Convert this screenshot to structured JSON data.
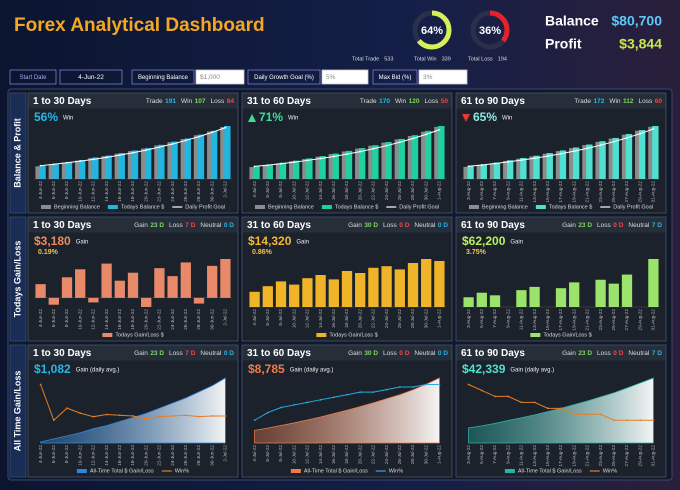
{
  "header": {
    "title": "Forex Analytical Dashboard",
    "gauges": [
      {
        "value": 64,
        "label": "64%",
        "color": "#d6f05a"
      },
      {
        "value": 36,
        "label": "36%",
        "color": "#e8202a"
      }
    ],
    "totals": [
      {
        "label": "Total Trade",
        "value": 533
      },
      {
        "label": "Total Win",
        "value": 339
      },
      {
        "label": "Total Loss",
        "value": 194
      }
    ],
    "summary": [
      {
        "label": "Balance",
        "value": "$80,700",
        "color": "#5bc8f5"
      },
      {
        "label": "Profit",
        "value": "$3,844",
        "color": "#c8e84a"
      }
    ]
  },
  "inputs": [
    {
      "label": "Start Date",
      "value": "4-Jun-22"
    },
    {
      "label": "Beginning Balance",
      "value": "$1,000"
    },
    {
      "label": "Daily Growth Goal (%)",
      "value": "5%"
    },
    {
      "label": "Max Bid (%)",
      "value": "3%"
    }
  ],
  "rows": [
    "Balance & Profit",
    "Todays Gain/Loss",
    "All Time Gain/Loss"
  ],
  "chart_data": [
    {
      "type": "bar",
      "title": "1 to 30 Days",
      "stats": [
        {
          "label": "Trade",
          "value": 191,
          "color": "#29b6e6"
        },
        {
          "label": "Win",
          "value": 107,
          "color": "#7ed957"
        },
        {
          "label": "Loss",
          "value": 84,
          "color": "#ff4040"
        }
      ],
      "headline": {
        "text": "56%",
        "label": "Win",
        "color": "#29b6e6"
      },
      "categories": [
        "4-Jun-22",
        "6-Jun-22",
        "8-Jun-22",
        "10-Jun-22",
        "12-Jun-22",
        "14-Jun-22",
        "16-Jun-22",
        "18-Jun-22",
        "20-Jun-22",
        "22-Jun-22",
        "24-Jun-22",
        "26-Jun-22",
        "28-Jun-22",
        "30-Jun-22",
        "2-Jul-22"
      ],
      "series": [
        {
          "name": "Beginning Balance",
          "color": "#8c8c8c",
          "values": [
            1000,
            1150,
            1300,
            1450,
            1650,
            1800,
            2000,
            2200,
            2400,
            2650,
            2900,
            3150,
            3450,
            3750,
            4100
          ]
        },
        {
          "name": "Todays Balance $",
          "color": "#22b5e0",
          "values": [
            1050,
            1200,
            1350,
            1500,
            1700,
            1850,
            2050,
            2250,
            2450,
            2700,
            2950,
            3200,
            3500,
            3800,
            4180
          ]
        },
        {
          "name": "Daily Profit Goal",
          "color": "#ffffff",
          "kind": "line",
          "values": [
            1050,
            1160,
            1280,
            1410,
            1550,
            1710,
            1880,
            2070,
            2280,
            2510,
            2760,
            3040,
            3340,
            3680,
            4050
          ]
        }
      ]
    },
    {
      "type": "bar",
      "title": "31 to 60 Days",
      "stats": [
        {
          "label": "Trade",
          "value": 170,
          "color": "#29b6e6"
        },
        {
          "label": "Win",
          "value": 120,
          "color": "#7ed957"
        },
        {
          "label": "Loss",
          "value": 50,
          "color": "#ff4040"
        }
      ],
      "headline": {
        "text": "71%",
        "label": "Win",
        "color": "#3ddc97"
      },
      "trend": "up",
      "categories": [
        "4-Jul-22",
        "6-Jul-22",
        "8-Jul-22",
        "10-Jul-22",
        "12-Jul-22",
        "14-Jul-22",
        "16-Jul-22",
        "18-Jul-22",
        "20-Jul-22",
        "22-Jul-22",
        "24-Jul-22",
        "26-Jul-22",
        "28-Jul-22",
        "30-Jul-22",
        "1-Aug-22"
      ],
      "series": [
        {
          "name": "Beginning Balance",
          "color": "#8c8c8c",
          "values": [
            4180,
            4800,
            5500,
            6200,
            7000,
            7800,
            8700,
            9600,
            10600,
            11600,
            12700,
            13800,
            15000,
            16500,
            18200
          ]
        },
        {
          "name": "Todays Balance $",
          "color": "#1fd1a0",
          "values": [
            4400,
            5000,
            5700,
            6400,
            7200,
            8000,
            8900,
            9800,
            10800,
            11800,
            12900,
            14000,
            15300,
            16800,
            18500
          ]
        },
        {
          "name": "Daily Profit Goal",
          "color": "#ffffff",
          "kind": "line",
          "values": [
            4390,
            4840,
            5330,
            5880,
            6480,
            7140,
            7870,
            8680,
            9570,
            10550,
            11630,
            12820,
            14130,
            15580,
            17180
          ]
        }
      ]
    },
    {
      "type": "bar",
      "title": "61 to 90 Days",
      "stats": [
        {
          "label": "Trade",
          "value": 172,
          "color": "#29b6e6"
        },
        {
          "label": "Win",
          "value": 112,
          "color": "#7ed957"
        },
        {
          "label": "Loss",
          "value": 60,
          "color": "#ff4040"
        }
      ],
      "headline": {
        "text": "65%",
        "label": "Win",
        "color": "#8ee8e2"
      },
      "trend": "down",
      "categories": [
        "3-Aug-22",
        "5-Aug-22",
        "7-Aug-22",
        "9-Aug-22",
        "11-Aug-22",
        "13-Aug-22",
        "15-Aug-22",
        "17-Aug-22",
        "19-Aug-22",
        "21-Aug-22",
        "23-Aug-22",
        "25-Aug-22",
        "27-Aug-22",
        "29-Aug-22",
        "31-Aug-22"
      ],
      "series": [
        {
          "name": "Beginning Balance",
          "color": "#8c8c8c",
          "values": [
            18500,
            21000,
            24000,
            27500,
            31000,
            34500,
            38500,
            42500,
            47000,
            51500,
            56500,
            61500,
            67500,
            73500,
            79500
          ]
        },
        {
          "name": "Todays Balance $",
          "color": "#4ee0d0",
          "values": [
            19500,
            22000,
            25000,
            28500,
            32000,
            35500,
            39500,
            43500,
            48000,
            52500,
            57500,
            62500,
            68500,
            74500,
            80700
          ]
        },
        {
          "name": "Daily Profit Goal",
          "color": "#ffffff",
          "kind": "line",
          "values": [
            19400,
            21400,
            23600,
            26000,
            28700,
            31600,
            34900,
            38400,
            42400,
            46700,
            51500,
            56800,
            62600,
            69000,
            76100
          ]
        }
      ]
    },
    {
      "type": "bar",
      "title": "1 to 30 Days",
      "stats": [
        {
          "label": "Gain",
          "value": "23 D",
          "color": "#7ed957"
        },
        {
          "label": "Loss",
          "value": "7 D",
          "color": "#ff4040"
        },
        {
          "label": "Neutral",
          "value": "0 D",
          "color": "#29b6e6"
        }
      ],
      "headline": {
        "text": "$3,180",
        "label": "Gain",
        "sub": "0.19%",
        "color": "#f08a5d"
      },
      "categories": [
        "4-Jun-22",
        "6-Jun-22",
        "8-Jun-22",
        "10-Jun-22",
        "12-Jun-22",
        "14-Jun-22",
        "16-Jun-22",
        "18-Jun-22",
        "20-Jun-22",
        "22-Jun-22",
        "24-Jun-22",
        "26-Jun-22",
        "28-Jun-22",
        "30-Jun-22",
        "2-Jul-22"
      ],
      "series": [
        {
          "name": "Todays Gain/Loss $",
          "color": "#e8896a",
          "values": [
            120,
            -60,
            180,
            250,
            -40,
            300,
            150,
            220,
            -80,
            260,
            190,
            310,
            -50,
            280,
            340
          ]
        }
      ]
    },
    {
      "type": "bar",
      "title": "31 to 60 Days",
      "stats": [
        {
          "label": "Gain",
          "value": "30 D",
          "color": "#7ed957"
        },
        {
          "label": "Loss",
          "value": "0 D",
          "color": "#ff4040"
        },
        {
          "label": "Neutral",
          "value": "0 D",
          "color": "#29b6e6"
        }
      ],
      "headline": {
        "text": "$14,320",
        "label": "Gain",
        "sub": "0.86%",
        "color": "#f5b82e"
      },
      "categories": [
        "4-Jul-22",
        "6-Jul-22",
        "8-Jul-22",
        "10-Jul-22",
        "12-Jul-22",
        "14-Jul-22",
        "16-Jul-22",
        "18-Jul-22",
        "20-Jul-22",
        "22-Jul-22",
        "24-Jul-22",
        "26-Jul-22",
        "28-Jul-22",
        "30-Jul-22",
        "1-Aug-22"
      ],
      "series": [
        {
          "name": "Todays Gain/Loss $",
          "color": "#f0b429",
          "values": [
            380,
            520,
            640,
            560,
            720,
            800,
            690,
            900,
            850,
            980,
            1020,
            940,
            1100,
            1200,
            1150
          ]
        }
      ]
    },
    {
      "type": "bar",
      "title": "61 to 90 Days",
      "stats": [
        {
          "label": "Gain",
          "value": "23 D",
          "color": "#7ed957"
        },
        {
          "label": "Loss",
          "value": "0 D",
          "color": "#ff4040"
        },
        {
          "label": "Neutral",
          "value": "7 D",
          "color": "#29b6e6"
        }
      ],
      "headline": {
        "text": "$62,200",
        "label": "Gain",
        "sub": "3.75%",
        "color": "#b8f05a"
      },
      "categories": [
        "3-Aug-22",
        "5-Aug-22",
        "7-Aug-22",
        "9-Aug-22",
        "11-Aug-22",
        "13-Aug-22",
        "15-Aug-22",
        "17-Aug-22",
        "19-Aug-22",
        "21-Aug-22",
        "23-Aug-22",
        "25-Aug-22",
        "27-Aug-22",
        "29-Aug-22",
        "31-Aug-22"
      ],
      "series": [
        {
          "name": "Todays Gain/Loss $",
          "color": "#9be36a",
          "values": [
            1500,
            2200,
            1800,
            0,
            2600,
            3100,
            0,
            2900,
            3800,
            0,
            4200,
            3600,
            5000,
            0,
            7400
          ]
        }
      ]
    },
    {
      "type": "area",
      "title": "1 to 30 Days",
      "stats": [
        {
          "label": "Gain",
          "value": "23 D",
          "color": "#7ed957"
        },
        {
          "label": "Loss",
          "value": "7 D",
          "color": "#ff4040"
        },
        {
          "label": "Neutral",
          "value": "0 D",
          "color": "#29b6e6"
        }
      ],
      "headline": {
        "text": "$1,082",
        "label": "Gain (daily avg.)",
        "color": "#29b6e6"
      },
      "categories": [
        "4-Jun-22",
        "6-Jun-22",
        "8-Jun-22",
        "10-Jun-22",
        "12-Jun-22",
        "14-Jun-22",
        "16-Jun-22",
        "18-Jun-22",
        "20-Jun-22",
        "22-Jun-22",
        "24-Jun-22",
        "26-Jun-22",
        "28-Jun-22",
        "30-Jun-22",
        "2-Jul-22"
      ],
      "series": [
        {
          "name": "All-Time Total $ Gain/Loss",
          "color": "#2e86de",
          "values": [
            50,
            200,
            350,
            500,
            700,
            850,
            1050,
            1250,
            1450,
            1700,
            1950,
            2200,
            2500,
            2800,
            3180
          ]
        },
        {
          "name": "Win%",
          "color": "#e67e22",
          "kind": "line",
          "values": [
            100,
            50,
            67,
            60,
            55,
            58,
            57,
            56,
            52,
            55,
            56,
            57,
            55,
            56,
            56
          ]
        }
      ]
    },
    {
      "type": "area",
      "title": "31 to 60 Days",
      "stats": [
        {
          "label": "Gain",
          "value": "30 D",
          "color": "#7ed957"
        },
        {
          "label": "Loss",
          "value": "0 D",
          "color": "#ff4040"
        },
        {
          "label": "Neutral",
          "value": "0 D",
          "color": "#29b6e6"
        }
      ],
      "headline": {
        "text": "$8,785",
        "label": "Gain (daily avg.)",
        "color": "#f07a4a"
      },
      "categories": [
        "4-Jul-22",
        "6-Jul-22",
        "8-Jul-22",
        "10-Jul-22",
        "12-Jul-22",
        "14-Jul-22",
        "16-Jul-22",
        "18-Jul-22",
        "20-Jul-22",
        "22-Jul-22",
        "24-Jul-22",
        "26-Jul-22",
        "28-Jul-22",
        "30-Jul-22",
        "1-Aug-22"
      ],
      "series": [
        {
          "name": "All-Time Total $ Gain/Loss",
          "color": "#f07a4a",
          "values": [
            3400,
            4000,
            4700,
            5400,
            6200,
            7000,
            7900,
            8800,
            9800,
            10800,
            11900,
            13000,
            14300,
            15800,
            17500
          ]
        },
        {
          "name": "Win%",
          "color": "#2ea8e0",
          "kind": "line",
          "values": [
            57,
            60,
            62,
            63,
            64,
            65,
            66,
            67,
            68,
            68,
            69,
            70,
            70,
            71,
            71
          ]
        }
      ]
    },
    {
      "type": "area",
      "title": "61 to 90 Days",
      "stats": [
        {
          "label": "Gain",
          "value": "23 D",
          "color": "#7ed957"
        },
        {
          "label": "Loss",
          "value": "0 D",
          "color": "#ff4040"
        },
        {
          "label": "Neutral",
          "value": "7 D",
          "color": "#29b6e6"
        }
      ],
      "headline": {
        "text": "$42,339",
        "label": "Gain (daily avg.)",
        "color": "#4ee0d0"
      },
      "categories": [
        "3-Aug-22",
        "5-Aug-22",
        "7-Aug-22",
        "9-Aug-22",
        "11-Aug-22",
        "13-Aug-22",
        "15-Aug-22",
        "17-Aug-22",
        "19-Aug-22",
        "21-Aug-22",
        "23-Aug-22",
        "25-Aug-22",
        "27-Aug-22",
        "29-Aug-22",
        "31-Aug-22"
      ],
      "series": [
        {
          "name": "All-Time Total $ Gain/Loss",
          "color": "#2ab3a6",
          "values": [
            18500,
            21000,
            24000,
            27500,
            31000,
            34500,
            38500,
            42500,
            47000,
            51500,
            56500,
            61500,
            67500,
            73500,
            79700
          ]
        },
        {
          "name": "Win%",
          "color": "#e67e22",
          "kind": "line",
          "values": [
            71,
            70,
            69,
            69,
            68,
            68,
            67,
            67,
            66,
            66,
            66,
            65,
            65,
            65,
            65
          ]
        }
      ]
    }
  ]
}
